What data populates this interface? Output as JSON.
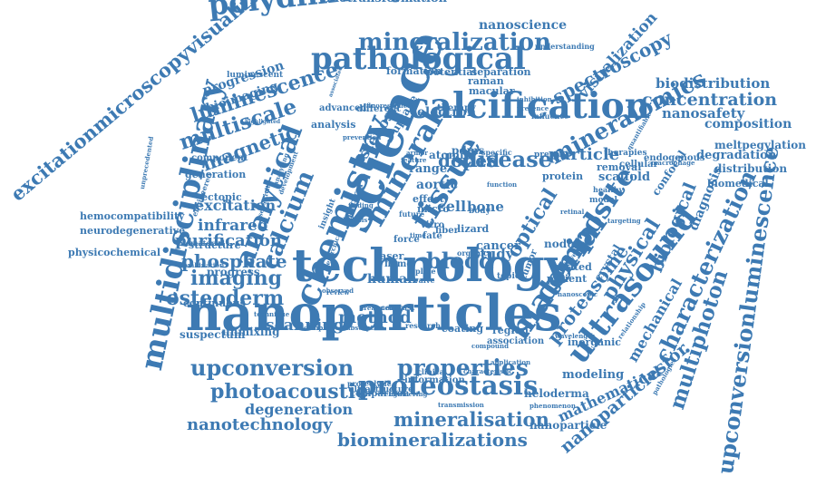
{
  "word_color": "#3d7ab3",
  "words": [
    {
      "text": "nanoparticles",
      "rotated": false
    },
    {
      "text": "technology",
      "rotated": false
    },
    {
      "text": "science",
      "rotated": true
    },
    {
      "text": "calcification",
      "rotated": false
    },
    {
      "text": "pathological",
      "rotated": false
    },
    {
      "text": "polydimethylsiloxane",
      "rotated": false
    },
    {
      "text": "chemistry",
      "rotated": true
    },
    {
      "text": "proteostasis",
      "rotated": false
    },
    {
      "text": "multidisciplinary",
      "rotated": true
    },
    {
      "text": "upconversionluminescence",
      "rotated": true
    },
    {
      "text": "excitationmicroscopyvisualization",
      "rotated": true
    },
    {
      "text": "characterization",
      "rotated": true
    },
    {
      "text": "mineralization",
      "rotated": false
    },
    {
      "text": "ultrasound",
      "rotated": true
    },
    {
      "text": "composite",
      "rotated": true
    },
    {
      "text": "multiphoton",
      "rotated": true
    },
    {
      "text": "material",
      "rotated": true
    },
    {
      "text": "tissue",
      "rotated": true
    },
    {
      "text": "mineral",
      "rotated": true
    },
    {
      "text": "analytical",
      "rotated": true
    },
    {
      "text": "disease",
      "rotated": false
    },
    {
      "text": "blood",
      "rotated": false
    },
    {
      "text": "properties",
      "rotated": false
    },
    {
      "text": "upconversion",
      "rotated": false
    },
    {
      "text": "photoacoustic",
      "rotated": false
    },
    {
      "text": "biomineralizations",
      "rotated": false
    },
    {
      "text": "mineralisation",
      "rotated": false
    },
    {
      "text": "nanotechnology",
      "rotated": false
    },
    {
      "text": "degeneration",
      "rotated": false
    },
    {
      "text": "method",
      "rotated": false
    },
    {
      "text": "osteoderm",
      "rotated": false
    },
    {
      "text": "imaging",
      "rotated": false
    },
    {
      "text": "phosphate",
      "rotated": false
    },
    {
      "text": "purification",
      "rotated": false
    },
    {
      "text": "infrared",
      "rotated": false
    },
    {
      "text": "excitation",
      "rotated": false
    },
    {
      "text": "magnetic",
      "rotated": false
    },
    {
      "text": "multiscale",
      "rotated": false
    },
    {
      "text": "luminescence",
      "rotated": false
    },
    {
      "text": "bioimaging",
      "rotated": false
    },
    {
      "text": "progression",
      "rotated": false
    },
    {
      "text": "mineralomics",
      "rotated": true
    },
    {
      "text": "spectroscopy",
      "rotated": true
    },
    {
      "text": "nanoscience",
      "rotated": false
    },
    {
      "text": "biotransformation",
      "rotated": false
    },
    {
      "text": "concentration",
      "rotated": false
    },
    {
      "text": "biodistribution",
      "rotated": false
    },
    {
      "text": "nanosafety",
      "rotated": false
    },
    {
      "text": "composition",
      "rotated": false
    },
    {
      "text": "meltpegylation",
      "rotated": false
    },
    {
      "text": "degradation",
      "rotated": false
    },
    {
      "text": "distribution",
      "rotated": false
    },
    {
      "text": "biomedical",
      "rotated": false
    },
    {
      "text": "biological",
      "rotated": true
    },
    {
      "text": "diagnosis",
      "rotated": true
    },
    {
      "text": "physical",
      "rotated": true
    },
    {
      "text": "proteasome",
      "rotated": true
    },
    {
      "text": "mechanical",
      "rotated": true
    },
    {
      "text": "mathematical",
      "rotated": true
    },
    {
      "text": "nanoparticlesfor",
      "rotated": true
    },
    {
      "text": "nanoparticle",
      "rotated": false
    },
    {
      "text": "heloderma",
      "rotated": false
    },
    {
      "text": "modeling",
      "rotated": false
    },
    {
      "text": "particle",
      "rotated": false
    },
    {
      "text": "doped",
      "rotated": false
    },
    {
      "text": "scaffold",
      "rotated": false
    },
    {
      "text": "optical",
      "rotated": true
    },
    {
      "text": "stenosis",
      "rotated": true
    },
    {
      "text": "removal",
      "rotated": false
    },
    {
      "text": "protein",
      "rotated": false
    },
    {
      "text": "cell",
      "rotated": false
    },
    {
      "text": "bone",
      "rotated": false
    },
    {
      "text": "study",
      "rotated": false
    },
    {
      "text": "human",
      "rotated": false
    },
    {
      "text": "cancer",
      "rotated": false
    },
    {
      "text": "aortic",
      "rotated": false
    },
    {
      "text": "range",
      "rotated": false
    },
    {
      "text": "pdms",
      "rotated": false
    },
    {
      "text": "atomic",
      "rotated": false
    },
    {
      "text": "electron",
      "rotated": false
    },
    {
      "text": "raman",
      "rotated": false
    },
    {
      "text": "calcium",
      "rotated": true
    },
    {
      "text": "scanning",
      "rotated": false
    },
    {
      "text": "unmixing",
      "rotated": false
    },
    {
      "text": "suspectum",
      "rotated": false
    },
    {
      "text": "continuous",
      "rotated": false
    },
    {
      "text": "progress",
      "rotated": false
    },
    {
      "text": "structure",
      "rotated": false
    },
    {
      "text": "hemocompatibility",
      "rotated": false
    },
    {
      "text": "neurodegenerative",
      "rotated": false
    },
    {
      "text": "physicochemical",
      "rotated": false
    },
    {
      "text": "ectopic",
      "rotated": false
    },
    {
      "text": "generation",
      "rotated": false
    },
    {
      "text": "component",
      "rotated": false
    },
    {
      "text": "luminescent",
      "rotated": false
    },
    {
      "text": "analysis",
      "rotated": false
    },
    {
      "text": "formation",
      "rotated": false
    },
    {
      "text": "potential",
      "rotated": false
    },
    {
      "text": "separation",
      "rotated": false
    },
    {
      "text": "understanding",
      "rotated": false
    },
    {
      "text": "visualization",
      "rotated": true
    },
    {
      "text": "region",
      "rotated": false
    },
    {
      "text": "association",
      "rotated": false
    },
    {
      "text": "coating",
      "rotated": false
    },
    {
      "text": "patient",
      "rotated": false
    },
    {
      "text": "related",
      "rotated": false
    },
    {
      "text": "crystal",
      "rotated": true
    },
    {
      "text": "inorganic",
      "rotated": false
    },
    {
      "text": "comparison",
      "rotated": false
    },
    {
      "text": "information",
      "rotated": false
    },
    {
      "text": "ultrastructure",
      "rotated": false
    },
    {
      "text": "endogenous",
      "rotated": false
    },
    {
      "text": "cellular",
      "rotated": false
    },
    {
      "text": "confocal",
      "rotated": true
    },
    {
      "text": "macular",
      "rotated": false
    },
    {
      "text": "therapy",
      "rotated": false
    },
    {
      "text": "advanced",
      "rotated": false
    },
    {
      "text": "different",
      "rotated": false
    },
    {
      "text": "fluorescence",
      "rotated": false
    },
    {
      "text": "influence",
      "rotated": false
    },
    {
      "text": "model",
      "rotated": false
    },
    {
      "text": "nodule",
      "rotated": false
    },
    {
      "text": "lizard",
      "rotated": false
    },
    {
      "text": "body",
      "rotated": false
    },
    {
      "text": "fiber",
      "rotated": false
    },
    {
      "text": "fate",
      "rotated": false
    },
    {
      "text": "laser",
      "rotated": false
    },
    {
      "text": "flame",
      "rotated": false
    },
    {
      "text": "force",
      "rotated": false
    },
    {
      "text": "vitro",
      "rotated": false
    },
    {
      "text": "micro",
      "rotated": false
    },
    {
      "text": "effect",
      "rotated": false
    },
    {
      "text": "spectral",
      "rotated": true
    },
    {
      "text": "insight",
      "rotated": true
    },
    {
      "text": "plate",
      "rotated": false
    },
    {
      "text": "valve",
      "rotated": false
    },
    {
      "text": "topic",
      "rotated": false
    },
    {
      "text": "tumor",
      "rotated": true
    },
    {
      "text": "present",
      "rotated": false
    },
    {
      "text": "specific",
      "rotated": false
    },
    {
      "text": "therapies",
      "rotated": false
    },
    {
      "text": "healthy",
      "rotated": false
    },
    {
      "text": "armor",
      "rotated": false
    },
    {
      "text": "finding",
      "rotated": false
    },
    {
      "text": "uptake",
      "rotated": true
    },
    {
      "text": "prevention",
      "rotated": false
    },
    {
      "text": "nanoscopic",
      "rotated": false
    },
    {
      "text": "wavelength",
      "rotated": false
    },
    {
      "text": "pathologies",
      "rotated": true
    },
    {
      "text": "quantifiable",
      "rotated": true
    },
    {
      "text": "macrophage",
      "rotated": false
    },
    {
      "text": "inhibition",
      "rotated": false
    },
    {
      "text": "presence",
      "rotated": false
    },
    {
      "text": "future",
      "rotated": false
    },
    {
      "text": "time",
      "rotated": false
    },
    {
      "text": "retinal",
      "rotated": false
    },
    {
      "text": "targeting",
      "rotated": false
    },
    {
      "text": "biomaterial",
      "rotated": false
    },
    {
      "text": "combination",
      "rotated": false
    },
    {
      "text": "engineered",
      "rotated": true
    },
    {
      "text": "unprecedented",
      "rotated": true
    },
    {
      "text": "highlighted",
      "rotated": false
    },
    {
      "text": "analyzing",
      "rotated": true
    },
    {
      "text": "development",
      "rotated": true
    },
    {
      "text": "hierarchical",
      "rotated": true
    },
    {
      "text": "absorption",
      "rotated": false
    },
    {
      "text": "research",
      "rotated": false
    },
    {
      "text": "complex",
      "rotated": false
    },
    {
      "text": "clinical",
      "rotated": false
    },
    {
      "text": "characteristic",
      "rotated": false
    },
    {
      "text": "transmission",
      "rotated": false
    },
    {
      "text": "phenomenon",
      "rotated": false
    },
    {
      "text": "engineering",
      "rotated": false
    },
    {
      "text": "proteolytic",
      "rotated": false
    },
    {
      "text": "compound",
      "rotated": false
    },
    {
      "text": "application",
      "rotated": false
    },
    {
      "text": "organic",
      "rotated": false
    },
    {
      "text": "contrast",
      "rotated": false
    },
    {
      "text": "review",
      "rotated": false
    },
    {
      "text": "technique",
      "rotated": false
    },
    {
      "text": "treatment",
      "rotated": false
    },
    {
      "text": "dialysis",
      "rotated": false
    },
    {
      "text": "sensitivity",
      "rotated": true
    },
    {
      "text": "associated",
      "rotated": true
    },
    {
      "text": "observed",
      "rotated": false
    },
    {
      "text": "feature",
      "rotated": false
    },
    {
      "text": "function",
      "rotated": false
    },
    {
      "text": "contact",
      "rotated": true
    },
    {
      "text": "driven",
      "rotated": true
    },
    {
      "text": "relationship",
      "rotated": true
    }
  ]
}
